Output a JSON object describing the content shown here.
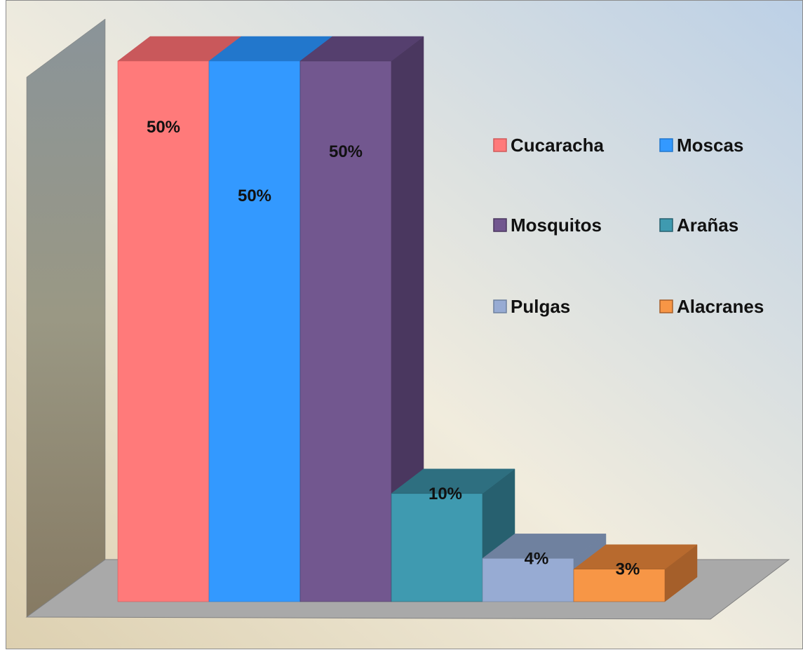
{
  "chart_data": {
    "type": "bar",
    "three_d": true,
    "categories": [
      "Cucaracha",
      "Moscas",
      "Mosquitos",
      "Arañas",
      "Pulgas",
      "Alacranes"
    ],
    "series": [
      {
        "name": "Cucaracha",
        "category": "Cucaracha",
        "value": 50,
        "label": "50%",
        "color": "#ff7a7a",
        "top_color": "#c9585b",
        "side_color": "#d05a5a"
      },
      {
        "name": "Moscas",
        "category": "Moscas",
        "value": 50,
        "label": "50%",
        "color": "#3399ff",
        "top_color": "#2277cc",
        "side_color": "#2277cc"
      },
      {
        "name": "Mosquitos",
        "category": "Mosquitos",
        "value": 50,
        "label": "50%",
        "color": "#72578f",
        "top_color": "#553f6e",
        "side_color": "#4a375f"
      },
      {
        "name": "Arañas",
        "category": "Arañas",
        "value": 10,
        "label": "10%",
        "color": "#3f9ab0",
        "top_color": "#2e6f80",
        "side_color": "#27606f"
      },
      {
        "name": "Pulgas",
        "category": "Pulgas",
        "value": 4,
        "label": "4%",
        "color": "#97abd3",
        "top_color": "#6f819f",
        "side_color": "#6f819f"
      },
      {
        "name": "Alacranes",
        "category": "Alacranes",
        "value": 3,
        "label": "3%",
        "color": "#f79646",
        "top_color": "#b86a2e",
        "side_color": "#a55f2a"
      }
    ],
    "ylim": [
      0,
      50
    ],
    "legend": "right",
    "legend_columns": 2,
    "grid": false,
    "xlabel": "",
    "ylabel": ""
  }
}
